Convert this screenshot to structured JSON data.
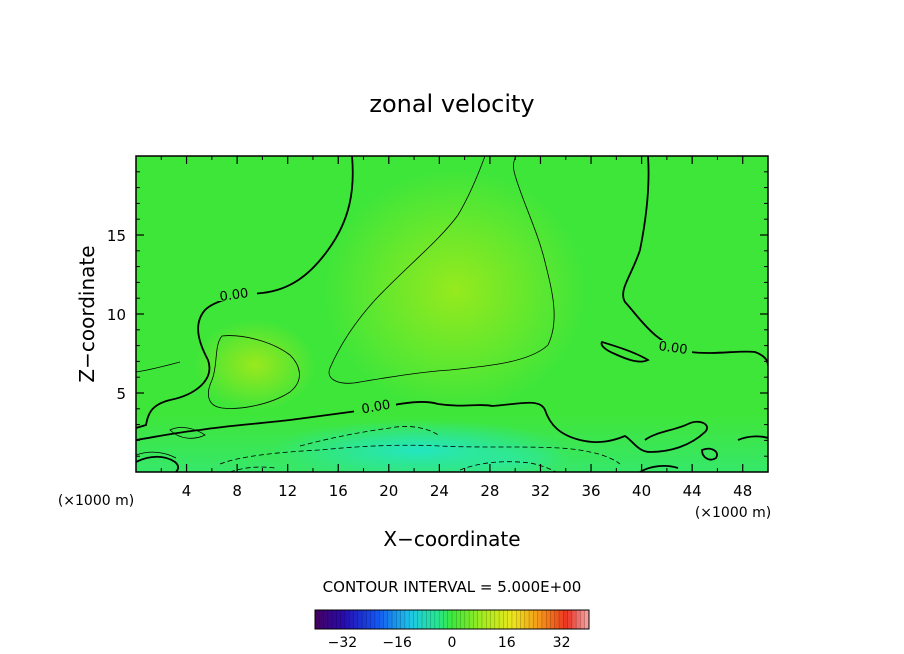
{
  "chart_data": {
    "type": "heatmap",
    "title": "zonal velocity",
    "xlabel": "X−coordinate",
    "ylabel": "Z−coordinate",
    "x_unit_left": "(×1000 m)",
    "x_unit_right": "(×1000 m)",
    "xlim": [
      0,
      50
    ],
    "ylim": [
      0,
      20
    ],
    "xticks": [
      4,
      8,
      12,
      16,
      20,
      24,
      28,
      32,
      36,
      40,
      44,
      48
    ],
    "yticks": [
      5,
      10,
      15
    ],
    "contour_labels": [
      "0.00",
      "0.00",
      "0.00"
    ],
    "contour_interval_text": "CONTOUR INTERVAL = 5.000E+00",
    "colorbar": {
      "min": -40,
      "max": 40,
      "ticks": [
        -32,
        -16,
        0,
        16,
        32
      ],
      "tick_labels": [
        "−32",
        "−16",
        "0",
        "16",
        "32"
      ]
    },
    "colors": {
      "field_base": "#3fe63a",
      "field_high": "#8de81e",
      "field_low": "#22e8c0"
    }
  }
}
